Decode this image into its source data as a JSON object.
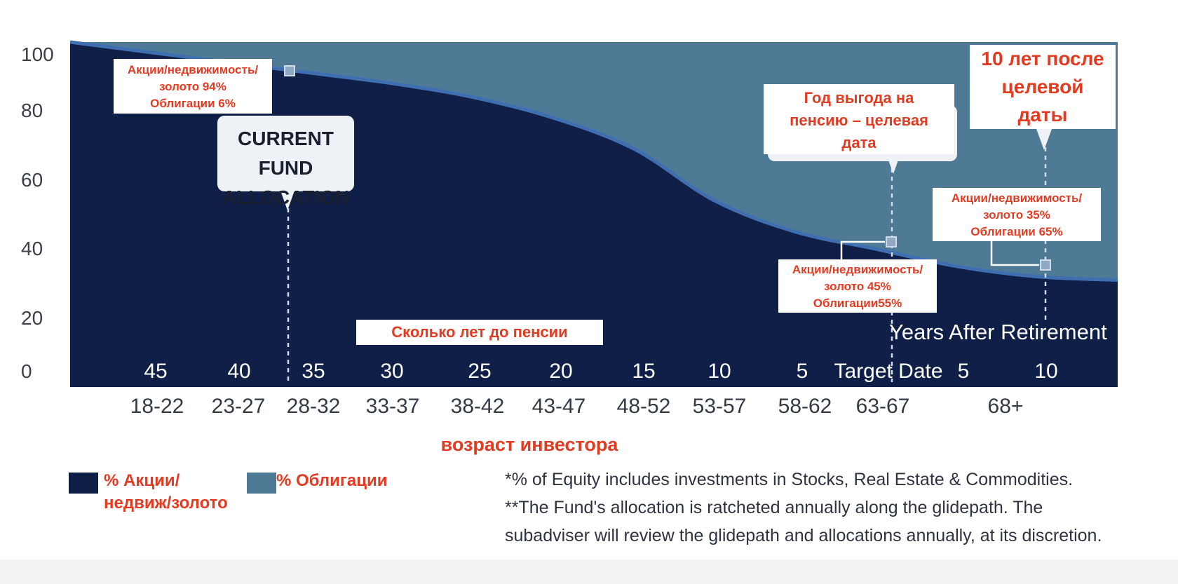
{
  "chart_data": {
    "type": "area",
    "stacked": true,
    "ylim": [
      0,
      100
    ],
    "yticks": [
      "100",
      "80",
      "60",
      "40",
      "20",
      "0"
    ],
    "x_years_labels": [
      "45",
      "40",
      "35",
      "30",
      "25",
      "20",
      "15",
      "10",
      "5",
      "Target Date",
      "5",
      "10"
    ],
    "x_age_labels": [
      "18-22",
      "23-27",
      "28-32",
      "33-37",
      "38-42",
      "43-47",
      "48-52",
      "53-57",
      "58-62",
      "63-67",
      "68+"
    ],
    "x": [
      0,
      1,
      2,
      3,
      4,
      5,
      6,
      7,
      8,
      9,
      10,
      11,
      12,
      13
    ],
    "series": [
      {
        "name": "% Акции/ недвиж/золото",
        "color": "#0f1f48",
        "values": [
          100,
          97,
          94,
          91,
          88,
          84,
          78,
          69,
          54,
          45,
          40,
          35,
          32,
          31
        ]
      },
      {
        "name": "% Облигации",
        "color": "#4e7a96",
        "values": [
          0,
          3,
          6,
          9,
          12,
          16,
          22,
          31,
          46,
          55,
          60,
          65,
          68,
          69
        ]
      }
    ],
    "years_title": "Сколько лет до пенсии",
    "years_after_label": "Years After Retirement",
    "xlabel": "возраст инвестора",
    "annotations": {
      "current_fund": "CURRENT FUND\nALLOCATION",
      "box_current": [
        "Акции/недвижимость/",
        "золото 94%",
        "Облигации 6%"
      ],
      "box_target_title": [
        "Год выгода на",
        "пенсию – целевая",
        "дата"
      ],
      "box_target_alloc": [
        "Акции/недвижимость/",
        "золото 45%",
        "Облигации55%"
      ],
      "box_after_title": [
        "10 лет после",
        "целевой",
        "даты"
      ],
      "box_after_alloc": [
        "Акции/недвижимость/",
        "золото 35%",
        "Облигации 65%"
      ]
    },
    "colors": {
      "equity": "#0f1f48",
      "bonds": "#4e7a96",
      "line": "#3f6fb0",
      "red": "#e23b22"
    }
  },
  "legend": {
    "equity_label": [
      "% Акции/",
      "недвиж/золото"
    ],
    "bonds_label": "% Облигации"
  },
  "footnotes": [
    "*% of Equity includes investments in Stocks, Real Estate & Commodities.",
    "**The Fund's allocation is ratcheted annually along the glidepath. The",
    " subadviser will review the glidepath and allocations annually, at its discretion."
  ]
}
